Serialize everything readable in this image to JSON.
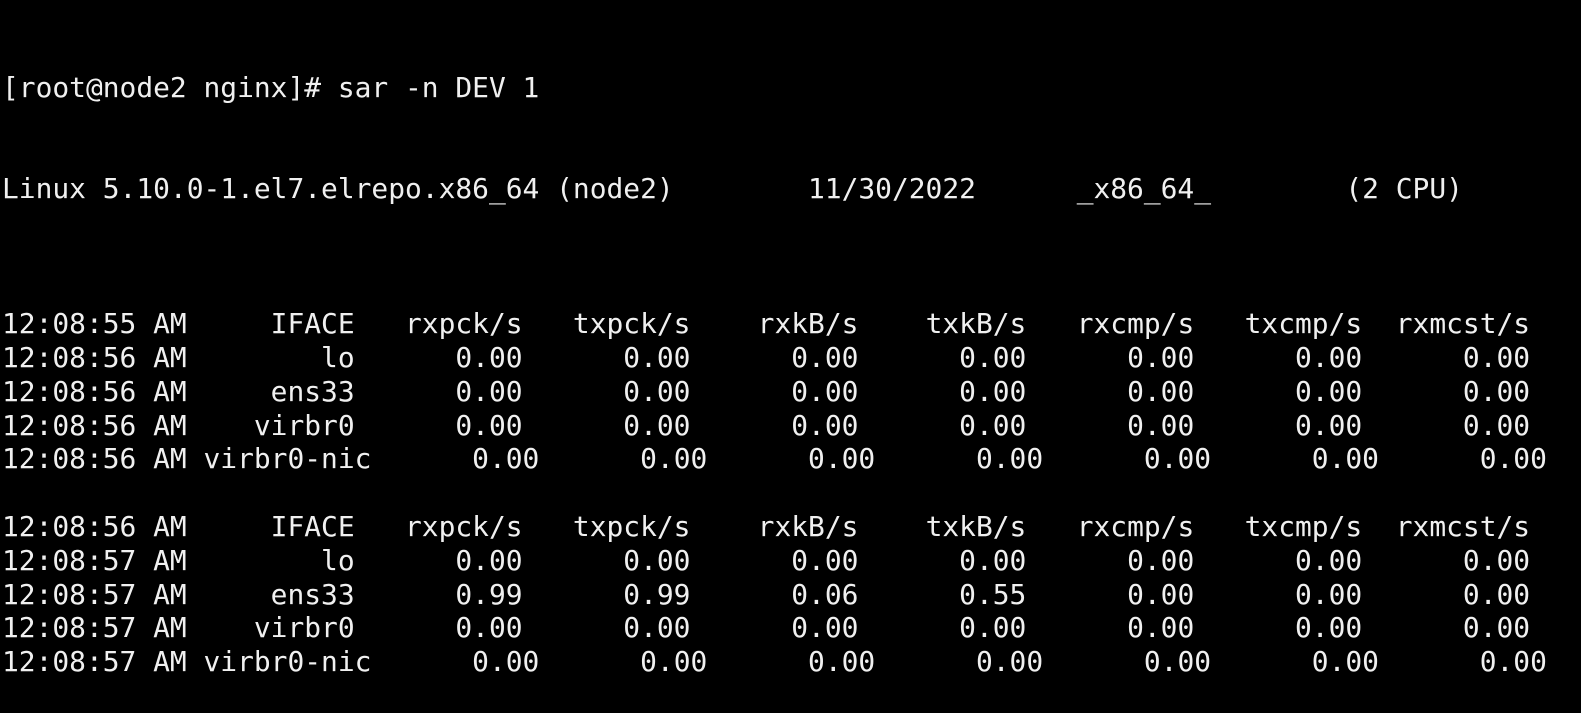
{
  "terminal": {
    "prompt": "[root@node2 nginx]# ",
    "command": "sar -n DEV 1",
    "sysinfo": {
      "kernel": "Linux 5.10.0-1.el7.elrepo.x86_64 (node2)",
      "date": "11/30/2022",
      "arch": "_x86_64_",
      "cpus": "(2 CPU)"
    },
    "columns": [
      "IFACE",
      "rxpck/s",
      "txpck/s",
      "rxkB/s",
      "txkB/s",
      "rxcmp/s",
      "txcmp/s",
      "rxmcst/s"
    ],
    "blocks": [
      {
        "header_time": "12:08:55 AM",
        "rows": [
          {
            "time": "12:08:56 AM",
            "iface": "lo",
            "values": [
              "0.00",
              "0.00",
              "0.00",
              "0.00",
              "0.00",
              "0.00",
              "0.00"
            ]
          },
          {
            "time": "12:08:56 AM",
            "iface": "ens33",
            "values": [
              "0.00",
              "0.00",
              "0.00",
              "0.00",
              "0.00",
              "0.00",
              "0.00"
            ]
          },
          {
            "time": "12:08:56 AM",
            "iface": "virbr0",
            "values": [
              "0.00",
              "0.00",
              "0.00",
              "0.00",
              "0.00",
              "0.00",
              "0.00"
            ]
          },
          {
            "time": "12:08:56 AM",
            "iface": "virbr0-nic",
            "values": [
              "0.00",
              "0.00",
              "0.00",
              "0.00",
              "0.00",
              "0.00",
              "0.00"
            ]
          }
        ]
      },
      {
        "header_time": "12:08:56 AM",
        "rows": [
          {
            "time": "12:08:57 AM",
            "iface": "lo",
            "values": [
              "0.00",
              "0.00",
              "0.00",
              "0.00",
              "0.00",
              "0.00",
              "0.00"
            ]
          },
          {
            "time": "12:08:57 AM",
            "iface": "ens33",
            "values": [
              "0.99",
              "0.99",
              "0.06",
              "0.55",
              "0.00",
              "0.00",
              "0.00"
            ]
          },
          {
            "time": "12:08:57 AM",
            "iface": "virbr0",
            "values": [
              "0.00",
              "0.00",
              "0.00",
              "0.00",
              "0.00",
              "0.00",
              "0.00"
            ]
          },
          {
            "time": "12:08:57 AM",
            "iface": "virbr0-nic",
            "values": [
              "0.00",
              "0.00",
              "0.00",
              "0.00",
              "0.00",
              "0.00",
              "0.00"
            ]
          }
        ]
      }
    ]
  }
}
